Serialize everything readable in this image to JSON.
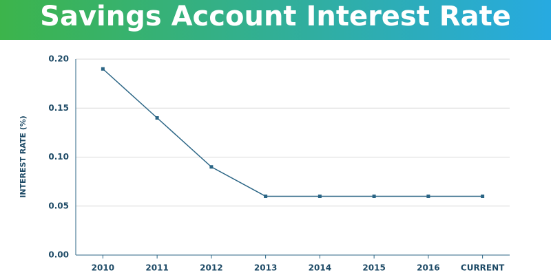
{
  "chart_data": {
    "type": "line",
    "title": "Savings Account Interest Rate",
    "y_label": "INTEREST RATE (%)",
    "categories": [
      "2010",
      "2011",
      "2012",
      "2013",
      "2014",
      "2015",
      "2016",
      "CURRENT"
    ],
    "series": [
      {
        "name": "Interest Rate",
        "color": "#2b6585",
        "values": [
          0.19,
          0.14,
          0.09,
          0.06,
          0.06,
          0.06,
          0.06,
          0.06
        ]
      }
    ],
    "ylim": [
      0,
      0.2
    ],
    "yticks": [
      {
        "value": 0,
        "label": "0.00"
      },
      0.05,
      {
        "value": 0.1,
        "label": "0.10"
      },
      0.15,
      {
        "value": 0.2,
        "label": "0.20"
      }
    ],
    "grid": true
  }
}
